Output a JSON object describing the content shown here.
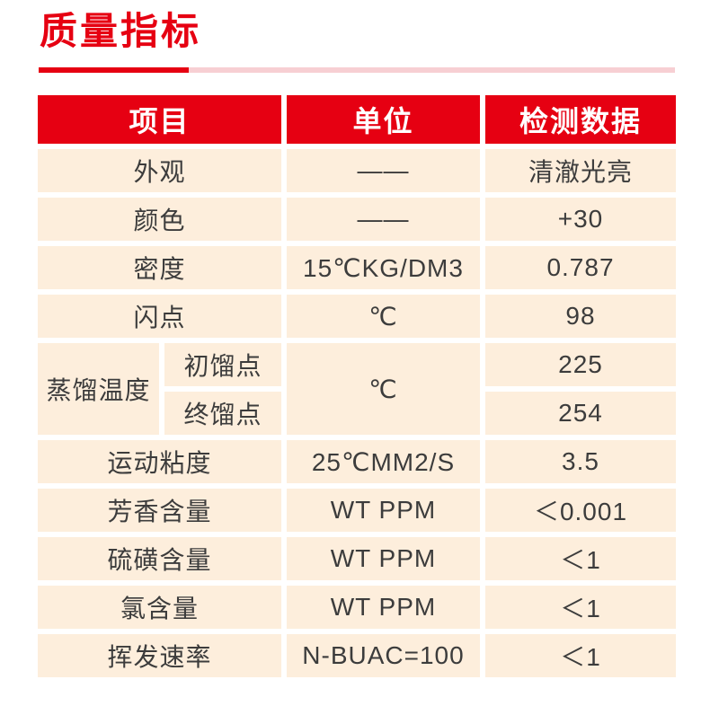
{
  "header": {
    "title": "质量指标",
    "title_color": "#e60012",
    "underline_accent_color": "#e60012",
    "underline_track_color": "#f7cfd3"
  },
  "table": {
    "header_bg": "#e60012",
    "header_text_color": "#ffffff",
    "cell_bg": "#fdeedc",
    "cell_text_color": "#3c3c3c",
    "columns": [
      "项目",
      "单位",
      "检测数据"
    ],
    "rows": [
      {
        "item": "外观",
        "unit": "——",
        "value": "清澈光亮"
      },
      {
        "item": "颜色",
        "unit": "——",
        "value": "+30"
      },
      {
        "item": "密度",
        "unit": "15℃KG/DM3",
        "value": "0.787"
      },
      {
        "item": "闪点",
        "unit": "℃",
        "value": "98"
      },
      {
        "item_group": "蒸馏温度",
        "sub_items": [
          "初馏点",
          "终馏点"
        ],
        "unit": "℃",
        "values": [
          "225",
          "254"
        ]
      },
      {
        "item": "运动粘度",
        "unit": "25℃MM2/S",
        "value": "3.5"
      },
      {
        "item": "芳香含量",
        "unit": "WT PPM",
        "value": "＜0.001"
      },
      {
        "item": "硫磺含量",
        "unit": "WT PPM",
        "value": "＜1"
      },
      {
        "item": "氯含量",
        "unit": "WT PPM",
        "value": "＜1"
      },
      {
        "item": "挥发速率",
        "unit": "N-BUAC=100",
        "value": "＜1"
      }
    ]
  }
}
